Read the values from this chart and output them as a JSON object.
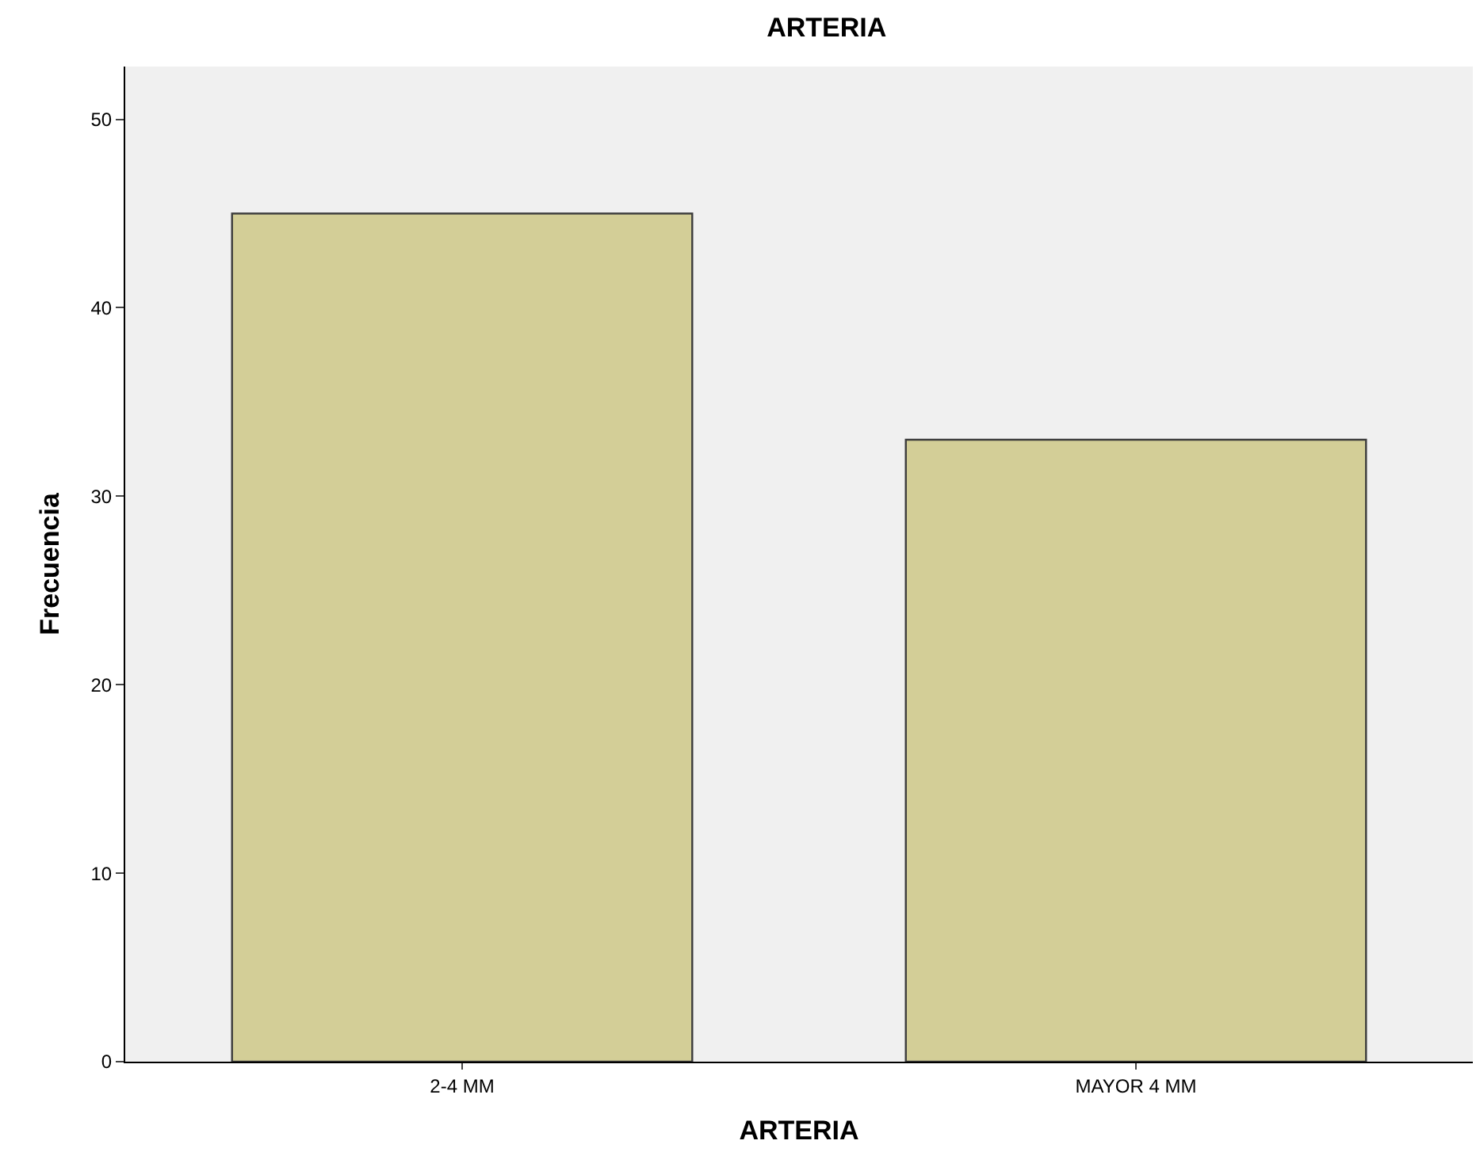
{
  "chart_data": {
    "type": "bar",
    "title": "ARTERIA",
    "xlabel": "ARTERIA",
    "ylabel": "Frecuencia",
    "categories": [
      "2-4 MM",
      "MAYOR 4 MM"
    ],
    "series": [
      {
        "color": "#d3ce97",
        "values": [
          45,
          33
        ]
      }
    ],
    "ylim": [
      0,
      52.8
    ],
    "yticks": [
      0,
      10,
      20,
      30,
      40,
      50
    ],
    "grid": false,
    "legend": false
  }
}
